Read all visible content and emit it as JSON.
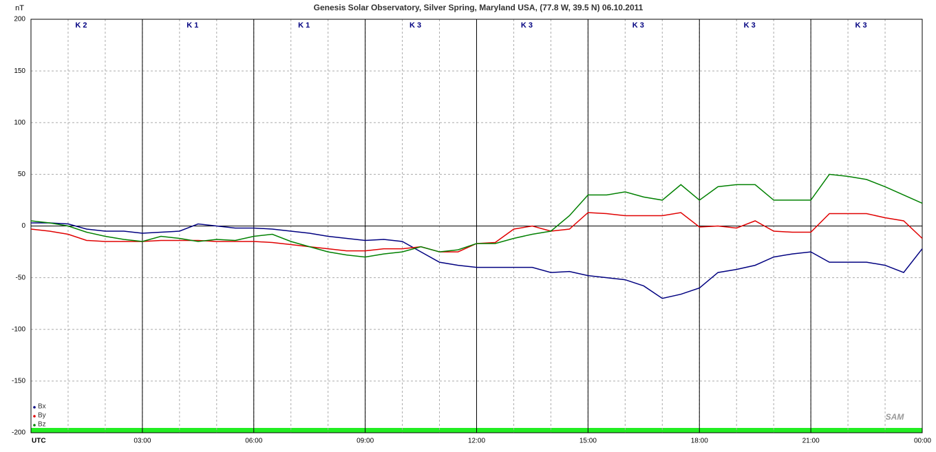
{
  "chart_data": {
    "type": "line",
    "title": "Genesis Solar Observatory, Silver Spring, Maryland USA, (77.8 W, 39.5 N)  06.10.2011",
    "y_label": "nT",
    "logo": "SAM",
    "k_labels": [
      "K 2",
      "K 1",
      "K 1",
      "K 3",
      "K 3",
      "K 3",
      "K 3",
      "K 3"
    ],
    "x": [
      0,
      0.5,
      1,
      1.5,
      2,
      2.5,
      3,
      3.5,
      4,
      4.5,
      5,
      5.5,
      6,
      6.5,
      7,
      7.5,
      8,
      8.5,
      9,
      9.5,
      10,
      10.5,
      11,
      11.5,
      12,
      12.5,
      13,
      13.5,
      14,
      14.5,
      15,
      15.5,
      16,
      16.5,
      17,
      17.5,
      18,
      18.5,
      19,
      19.5,
      20,
      20.5,
      21,
      21.5,
      22,
      22.5,
      23,
      23.5,
      24
    ],
    "xlim": [
      0,
      24
    ],
    "xticks": [
      {
        "value": 0,
        "label": "UTC"
      },
      {
        "value": 3,
        "label": "03:00"
      },
      {
        "value": 6,
        "label": "06:00"
      },
      {
        "value": 9,
        "label": "09:00"
      },
      {
        "value": 12,
        "label": "12:00"
      },
      {
        "value": 15,
        "label": "15:00"
      },
      {
        "value": 18,
        "label": "18:00"
      },
      {
        "value": 21,
        "label": "21:00"
      },
      {
        "value": 24,
        "label": "00:00"
      }
    ],
    "ylim": [
      -200,
      200
    ],
    "yticks": [
      -200,
      -150,
      -100,
      -50,
      0,
      50,
      100,
      150,
      200
    ],
    "grid": true,
    "legend": "lower left",
    "series": [
      {
        "name": "Bx",
        "color": "#000080",
        "values": [
          3,
          3,
          2,
          -3,
          -5,
          -5,
          -7,
          -6,
          -5,
          2,
          0,
          -2,
          -2,
          -3,
          -5,
          -7,
          -10,
          -12,
          -14,
          -13,
          -15,
          -25,
          -35,
          -38,
          -40,
          -40,
          -40,
          -40,
          -45,
          -44,
          -48,
          -50,
          -52,
          -58,
          -70,
          -66,
          -60,
          -45,
          -42,
          -38,
          -30,
          -27,
          -25,
          -35,
          -35,
          -35,
          -38,
          -45,
          -22
        ]
      },
      {
        "name": "By",
        "color": "#e00000",
        "values": [
          -3,
          -5,
          -8,
          -14,
          -15,
          -15,
          -15,
          -14,
          -14,
          -14,
          -15,
          -15,
          -15,
          -16,
          -18,
          -20,
          -22,
          -24,
          -24,
          -22,
          -22,
          -20,
          -25,
          -25,
          -17,
          -16,
          -3,
          0,
          -5,
          -3,
          13,
          12,
          10,
          10,
          10,
          13,
          -1,
          0,
          -2,
          5,
          -5,
          -6,
          -6,
          12,
          12,
          12,
          8,
          5,
          -12
        ]
      },
      {
        "name": "Bz",
        "color": "#008000",
        "values": [
          5,
          3,
          0,
          -6,
          -10,
          -13,
          -15,
          -10,
          -12,
          -15,
          -13,
          -14,
          -10,
          -8,
          -15,
          -20,
          -25,
          -28,
          -30,
          -27,
          -25,
          -20,
          -25,
          -23,
          -17,
          -17,
          -12,
          -8,
          -5,
          10,
          30,
          30,
          33,
          28,
          25,
          40,
          25,
          38,
          40,
          40,
          25,
          25,
          25,
          50,
          48,
          45,
          38,
          30,
          22
        ]
      }
    ]
  }
}
